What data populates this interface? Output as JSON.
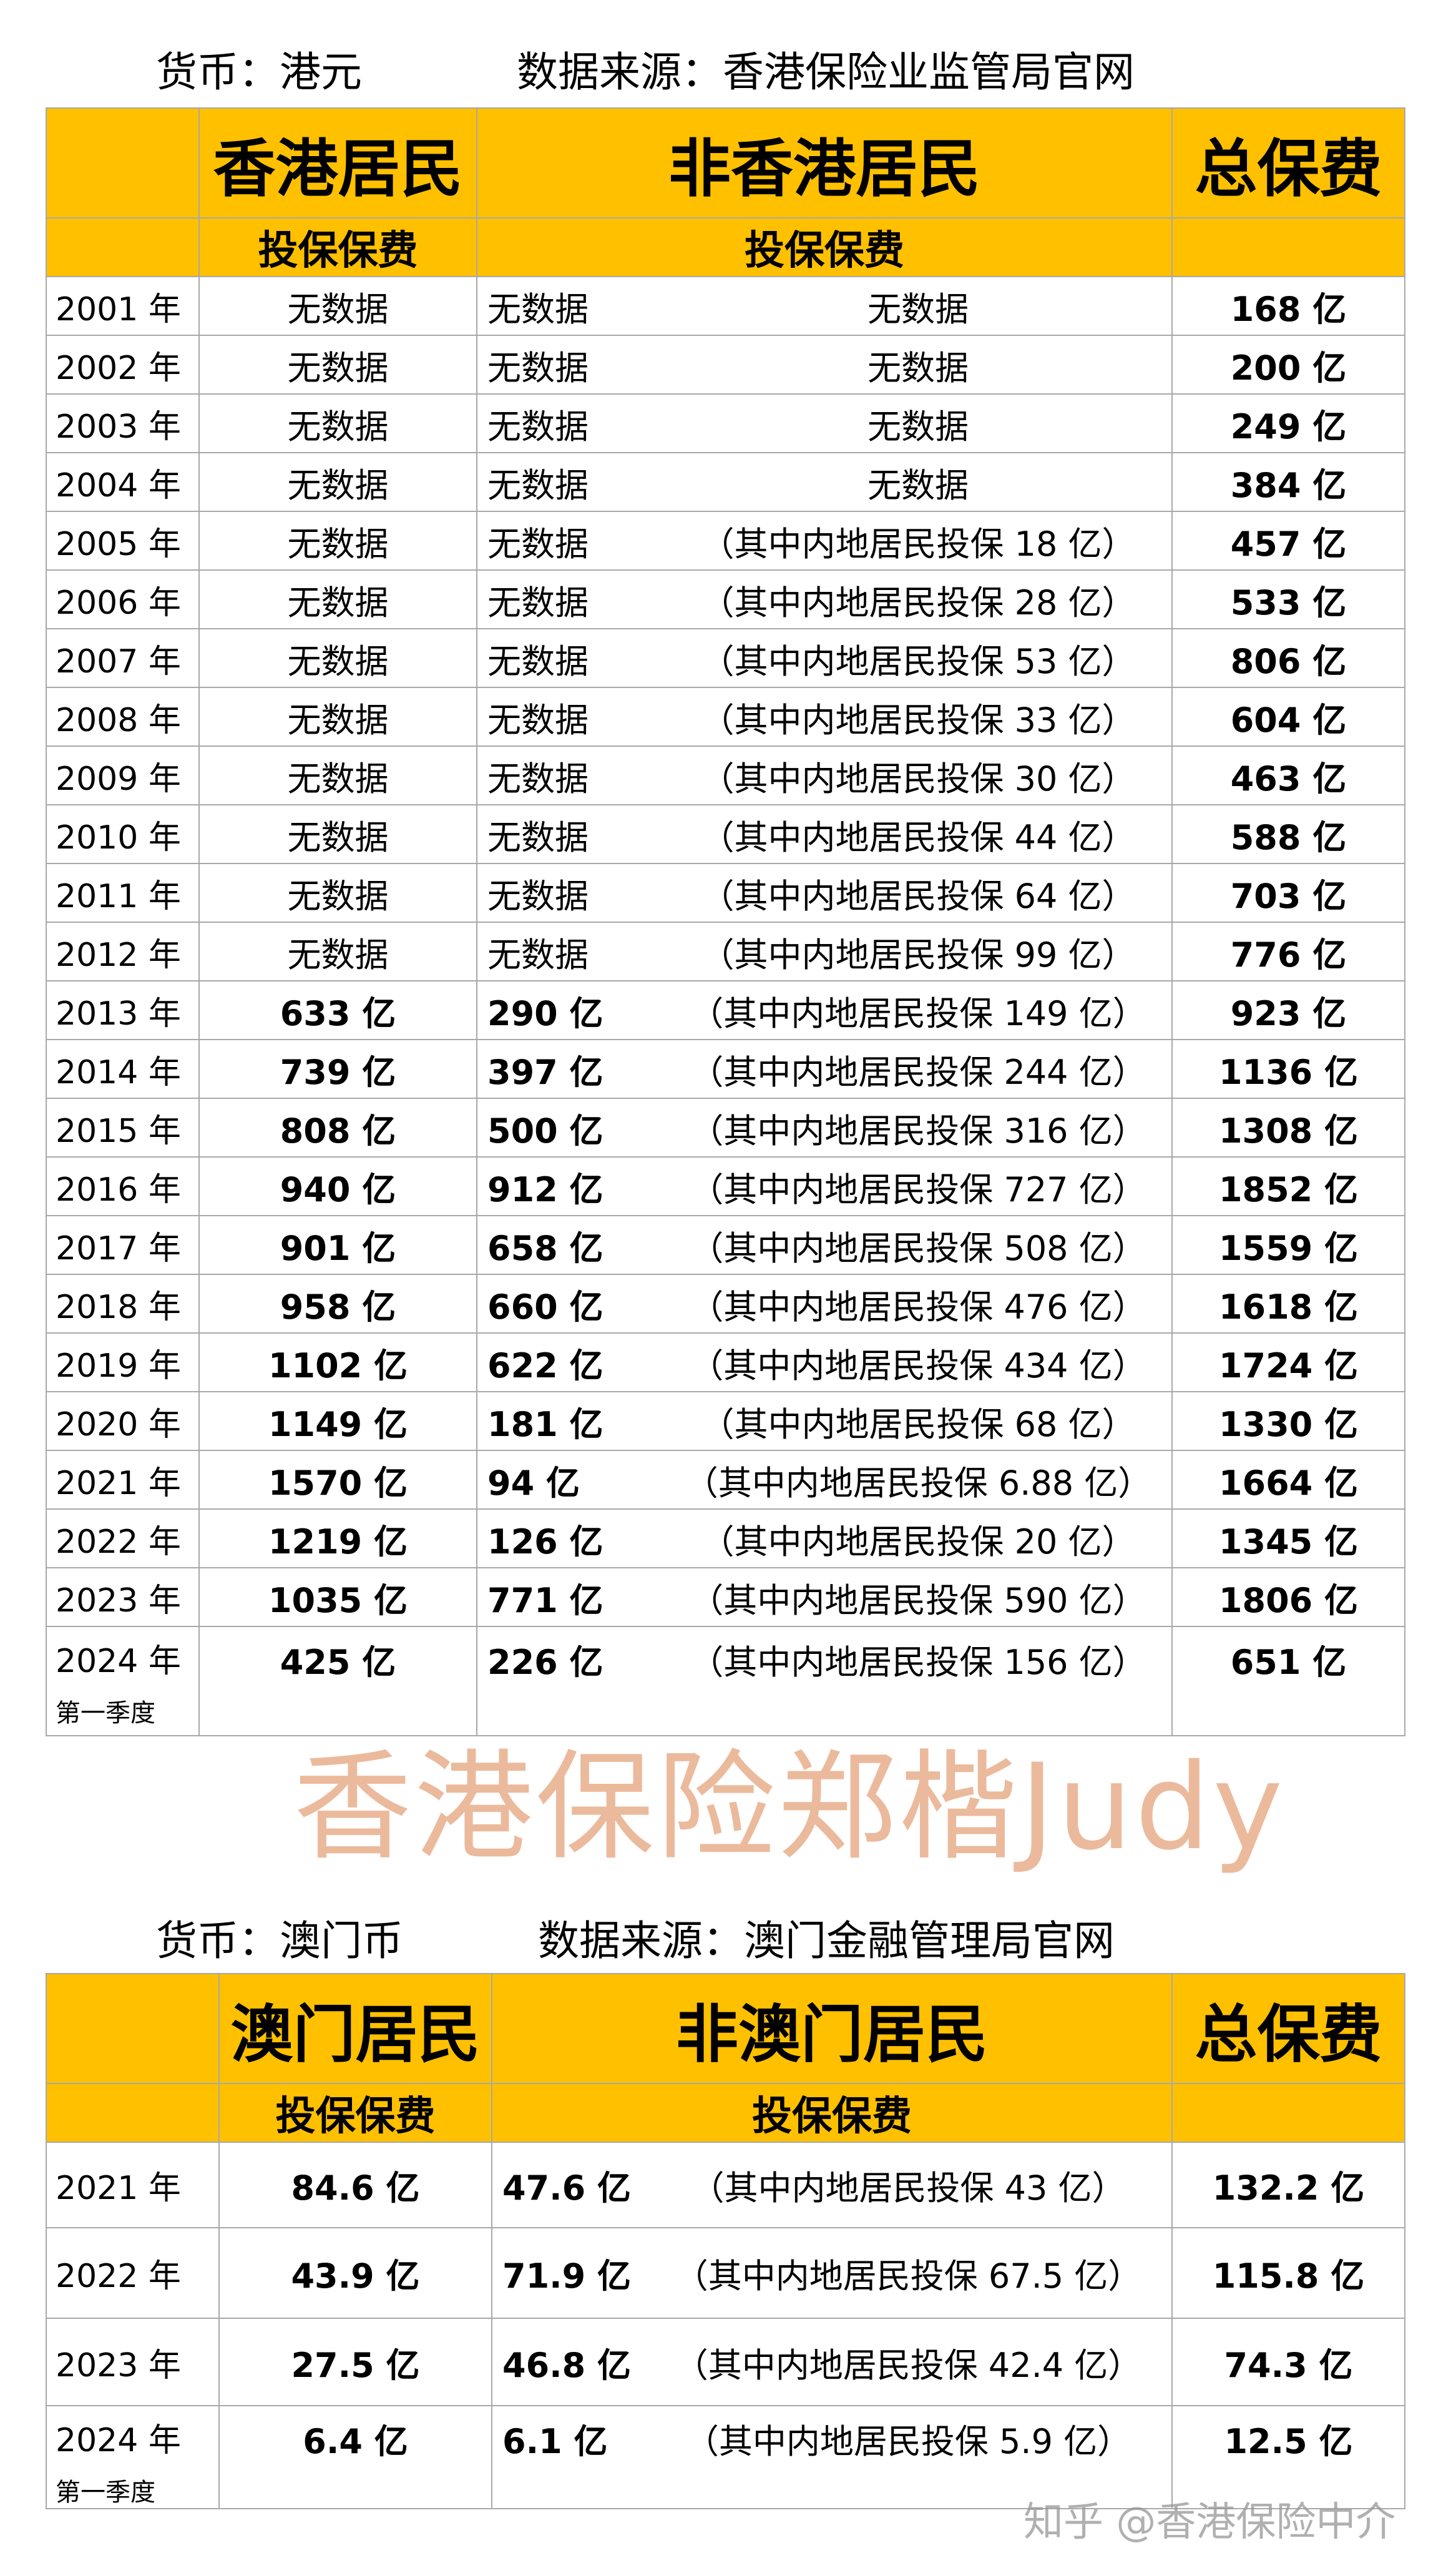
{
  "hk_table": {
    "caption_currency": "货币：港元",
    "caption_source": "数据来源：香港保险业监管局官网",
    "headers": {
      "resident": "香港居民",
      "non_resident": "非香港居民",
      "total": "总保费",
      "sub": "投保保费"
    },
    "rows": [
      {
        "year": "2001 年",
        "resident": "无数据",
        "non_resident": "无数据",
        "mainland": "无数据",
        "total": "168 亿"
      },
      {
        "year": "2002 年",
        "resident": "无数据",
        "non_resident": "无数据",
        "mainland": "无数据",
        "total": "200 亿"
      },
      {
        "year": "2003 年",
        "resident": "无数据",
        "non_resident": "无数据",
        "mainland": "无数据",
        "total": "249 亿"
      },
      {
        "year": "2004 年",
        "resident": "无数据",
        "non_resident": "无数据",
        "mainland": "无数据",
        "total": "384 亿"
      },
      {
        "year": "2005 年",
        "resident": "无数据",
        "non_resident": "无数据",
        "mainland": "（其中内地居民投保 18 亿）",
        "total": "457 亿"
      },
      {
        "year": "2006 年",
        "resident": "无数据",
        "non_resident": "无数据",
        "mainland": "（其中内地居民投保 28 亿）",
        "total": "533 亿"
      },
      {
        "year": "2007 年",
        "resident": "无数据",
        "non_resident": "无数据",
        "mainland": "（其中内地居民投保 53 亿）",
        "total": "806 亿"
      },
      {
        "year": "2008 年",
        "resident": "无数据",
        "non_resident": "无数据",
        "mainland": "（其中内地居民投保 33 亿）",
        "total": "604 亿"
      },
      {
        "year": "2009 年",
        "resident": "无数据",
        "non_resident": "无数据",
        "mainland": "（其中内地居民投保 30 亿）",
        "total": "463 亿"
      },
      {
        "year": "2010 年",
        "resident": "无数据",
        "non_resident": "无数据",
        "mainland": "（其中内地居民投保 44 亿）",
        "total": "588 亿"
      },
      {
        "year": "2011 年",
        "resident": "无数据",
        "non_resident": "无数据",
        "mainland": "（其中内地居民投保 64 亿）",
        "total": "703 亿"
      },
      {
        "year": "2012 年",
        "resident": "无数据",
        "non_resident": "无数据",
        "mainland": "（其中内地居民投保 99 亿）",
        "total": "776 亿"
      },
      {
        "year": "2013 年",
        "resident": "633 亿",
        "non_resident": "290 亿",
        "mainland": "（其中内地居民投保 149 亿）",
        "total": "923 亿"
      },
      {
        "year": "2014 年",
        "resident": "739 亿",
        "non_resident": "397 亿",
        "mainland": "（其中内地居民投保 244 亿）",
        "total": "1136 亿"
      },
      {
        "year": "2015 年",
        "resident": "808 亿",
        "non_resident": "500 亿",
        "mainland": "（其中内地居民投保 316 亿）",
        "total": "1308 亿"
      },
      {
        "year": "2016 年",
        "resident": "940 亿",
        "non_resident": "912 亿",
        "mainland": "（其中内地居民投保 727 亿）",
        "total": "1852 亿"
      },
      {
        "year": "2017 年",
        "resident": "901 亿",
        "non_resident": "658 亿",
        "mainland": "（其中内地居民投保 508 亿）",
        "total": "1559 亿"
      },
      {
        "year": "2018 年",
        "resident": "958 亿",
        "non_resident": "660 亿",
        "mainland": "（其中内地居民投保 476 亿）",
        "total": "1618 亿"
      },
      {
        "year": "2019 年",
        "resident": "1102 亿",
        "non_resident": "622 亿",
        "mainland": "（其中内地居民投保 434 亿）",
        "total": "1724 亿"
      },
      {
        "year": "2020 年",
        "resident": "1149 亿",
        "non_resident": "181 亿",
        "mainland": "（其中内地居民投保 68 亿）",
        "total": "1330 亿"
      },
      {
        "year": "2021 年",
        "resident": "1570 亿",
        "non_resident": "94 亿",
        "mainland": "（其中内地居民投保 6.88 亿）",
        "total": "1664 亿"
      },
      {
        "year": "2022 年",
        "resident": "1219 亿",
        "non_resident": "126 亿",
        "mainland": "（其中内地居民投保 20 亿）",
        "total": "1345 亿"
      },
      {
        "year": "2023 年",
        "resident": "1035 亿",
        "non_resident": "771 亿",
        "mainland": "（其中内地居民投保 590 亿）",
        "total": "1806 亿"
      },
      {
        "year": "2024 年",
        "quarter": "第一季度",
        "resident": "425 亿",
        "non_resident": "226 亿",
        "mainland": "（其中内地居民投保 156 亿）",
        "total": "651 亿"
      }
    ]
  },
  "macau_table": {
    "caption_currency": "货币：澳门币",
    "caption_source": "数据来源：澳门金融管理局官网",
    "headers": {
      "resident": "澳门居民",
      "non_resident": "非澳门居民",
      "total": "总保费",
      "sub": "投保保费"
    },
    "rows": [
      {
        "year": "2021 年",
        "resident": "84.6 亿",
        "non_resident": "47.6 亿",
        "mainland": "（其中内地居民投保 43 亿）",
        "total": "132.2 亿"
      },
      {
        "year": "2022 年",
        "resident": "43.9 亿",
        "non_resident": "71.9 亿",
        "mainland": "（其中内地居民投保 67.5 亿）",
        "total": "115.8 亿"
      },
      {
        "year": "2023 年",
        "resident": "27.5 亿",
        "non_resident": "46.8 亿",
        "mainland": "（其中内地居民投保 42.4 亿）",
        "total": "74.3 亿"
      },
      {
        "year": "2024  年",
        "quarter": "第一季度",
        "resident": "6.4 亿",
        "non_resident": "6.1 亿",
        "mainland": "（其中内地居民投保 5.9 亿）",
        "total": "12.5 亿"
      }
    ]
  },
  "watermark": "香港保险郑楷Judy",
  "footer_watermark": "知乎 @香港保险中介",
  "colors": {
    "header_bg": "#ffc000",
    "grid": "#a8a8a8",
    "watermark": "#de8c5a"
  }
}
